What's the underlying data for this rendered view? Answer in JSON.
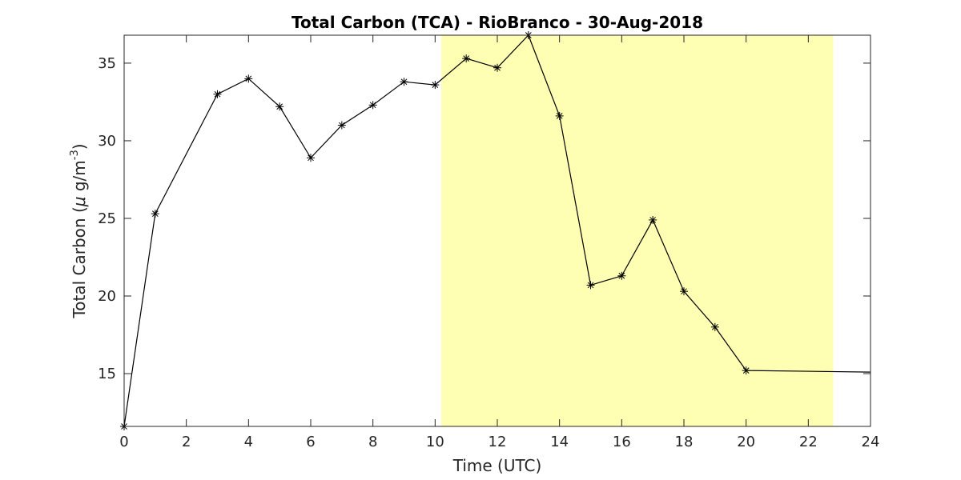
{
  "chart_data": {
    "type": "line",
    "title": "Total Carbon (TCA) - RioBranco - 30-Aug-2018",
    "xlabel": "Time (UTC)",
    "ylabel": "Total Carbon (μ g/m^-3)",
    "ylabel_parts": {
      "main": "Total Carbon (",
      "mu": "μ",
      "unit": " g/m",
      "exp": "-3",
      "close": ")"
    },
    "xlim": [
      0,
      24
    ],
    "ylim": [
      11.6,
      36.8
    ],
    "xticks": [
      0,
      2,
      4,
      6,
      8,
      10,
      12,
      14,
      16,
      18,
      20,
      22,
      24
    ],
    "yticks": [
      15,
      20,
      25,
      30,
      35
    ],
    "grid": false,
    "highlight_span": {
      "x_start": 10.2,
      "x_end": 22.8,
      "color": "#ffffb3"
    },
    "marker": "*",
    "line_color": "#000000",
    "series": [
      {
        "x": [
          0,
          1,
          3,
          4,
          5,
          6,
          7,
          8,
          9,
          10,
          11,
          12,
          13,
          14,
          15,
          16,
          17,
          18,
          19,
          20,
          24
        ],
        "y": [
          11.6,
          25.3,
          33.0,
          34.0,
          32.2,
          28.9,
          31.0,
          32.3,
          33.8,
          33.6,
          35.3,
          34.7,
          36.8,
          31.6,
          20.7,
          21.3,
          24.9,
          20.3,
          18.0,
          15.2,
          15.1
        ],
        "markers": [
          true,
          true,
          true,
          true,
          true,
          true,
          true,
          true,
          true,
          true,
          true,
          true,
          true,
          true,
          true,
          true,
          true,
          true,
          true,
          true,
          false
        ]
      }
    ]
  }
}
